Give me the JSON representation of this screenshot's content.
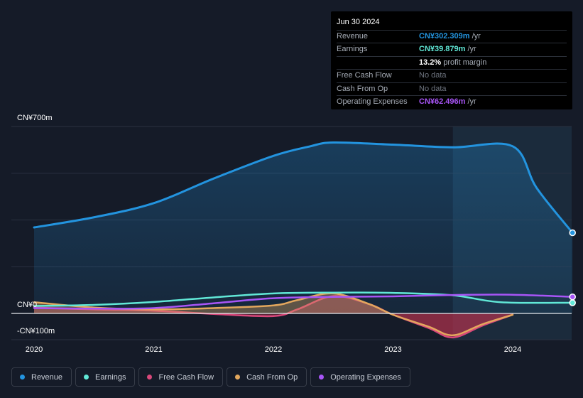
{
  "tooltip": {
    "date": "Jun 30 2024",
    "rows": [
      {
        "label": "Revenue",
        "value": "CN¥302.309m",
        "unit": "/yr",
        "color": "#2394df"
      },
      {
        "label": "Earnings",
        "value": "CN¥39.879m",
        "unit": "/yr",
        "color": "#61e8d7"
      },
      {
        "label": "",
        "value": "13.2%",
        "unit": "profit margin",
        "color": "#ffffff"
      },
      {
        "label": "Free Cash Flow",
        "value": "No data",
        "unit": "",
        "color": "#6f7580"
      },
      {
        "label": "Cash From Op",
        "value": "No data",
        "unit": "",
        "color": "#6f7580"
      },
      {
        "label": "Operating Expenses",
        "value": "CN¥62.496m",
        "unit": "/yr",
        "color": "#a855f7"
      }
    ]
  },
  "legend": [
    {
      "label": "Revenue",
      "color": "#2394df"
    },
    {
      "label": "Earnings",
      "color": "#61e8d7"
    },
    {
      "label": "Free Cash Flow",
      "color": "#d9487b"
    },
    {
      "label": "Cash From Op",
      "color": "#e3a75d"
    },
    {
      "label": "Operating Expenses",
      "color": "#a855f7"
    }
  ],
  "chart_data": {
    "type": "line",
    "ylim": [
      -100,
      700
    ],
    "y_tick_labels": {
      "top": "CN¥700m",
      "zero": "CN¥0",
      "bottom": "-CN¥100m"
    },
    "x_tick_labels": [
      "2020",
      "2021",
      "2022",
      "2023",
      "2024"
    ],
    "x_range": [
      2019.8,
      2024.5
    ],
    "forecast_start": 2023.5,
    "series": [
      {
        "name": "Revenue",
        "color": "#2394df",
        "fill": true,
        "x": [
          2020.0,
          2020.5,
          2021.0,
          2021.5,
          2022.0,
          2022.3,
          2022.5,
          2023.0,
          2023.5,
          2024.0,
          2024.2,
          2024.5
        ],
        "y": [
          322,
          360,
          413,
          505,
          590,
          625,
          640,
          632,
          622,
          626,
          470,
          302
        ]
      },
      {
        "name": "Earnings",
        "color": "#61e8d7",
        "fill": false,
        "x": [
          2020.0,
          2020.5,
          2021.0,
          2021.5,
          2022.0,
          2022.5,
          2023.0,
          2023.5,
          2023.9,
          2024.5
        ],
        "y": [
          28,
          32,
          43,
          60,
          75,
          78,
          77,
          68,
          42,
          40
        ]
      },
      {
        "name": "Operating Expenses",
        "color": "#a855f7",
        "fill": false,
        "x": [
          2020.0,
          2020.5,
          2021.0,
          2021.5,
          2022.0,
          2022.5,
          2023.0,
          2023.5,
          2024.0,
          2024.5
        ],
        "y": [
          20,
          18,
          20,
          38,
          57,
          62,
          64,
          69,
          70,
          62
        ]
      },
      {
        "name": "Free Cash Flow",
        "color": "#d9487b",
        "fill": true,
        "x": [
          2020.0,
          2020.5,
          2021.0,
          2021.5,
          2022.0,
          2022.2,
          2022.5,
          2022.8,
          2023.0,
          2023.3,
          2023.5,
          2023.75,
          2024.0
        ],
        "y": [
          22,
          15,
          10,
          -2,
          -10,
          15,
          65,
          35,
          -5,
          -55,
          -90,
          -45,
          -5
        ]
      },
      {
        "name": "Cash From Op",
        "color": "#e3a75d",
        "fill": true,
        "x": [
          2020.0,
          2020.5,
          2021.0,
          2021.5,
          2022.0,
          2022.2,
          2022.5,
          2022.8,
          2023.0,
          2023.3,
          2023.5,
          2023.75,
          2024.0
        ],
        "y": [
          42,
          22,
          15,
          20,
          30,
          50,
          75,
          35,
          -5,
          -50,
          -82,
          -40,
          -5
        ]
      }
    ]
  }
}
